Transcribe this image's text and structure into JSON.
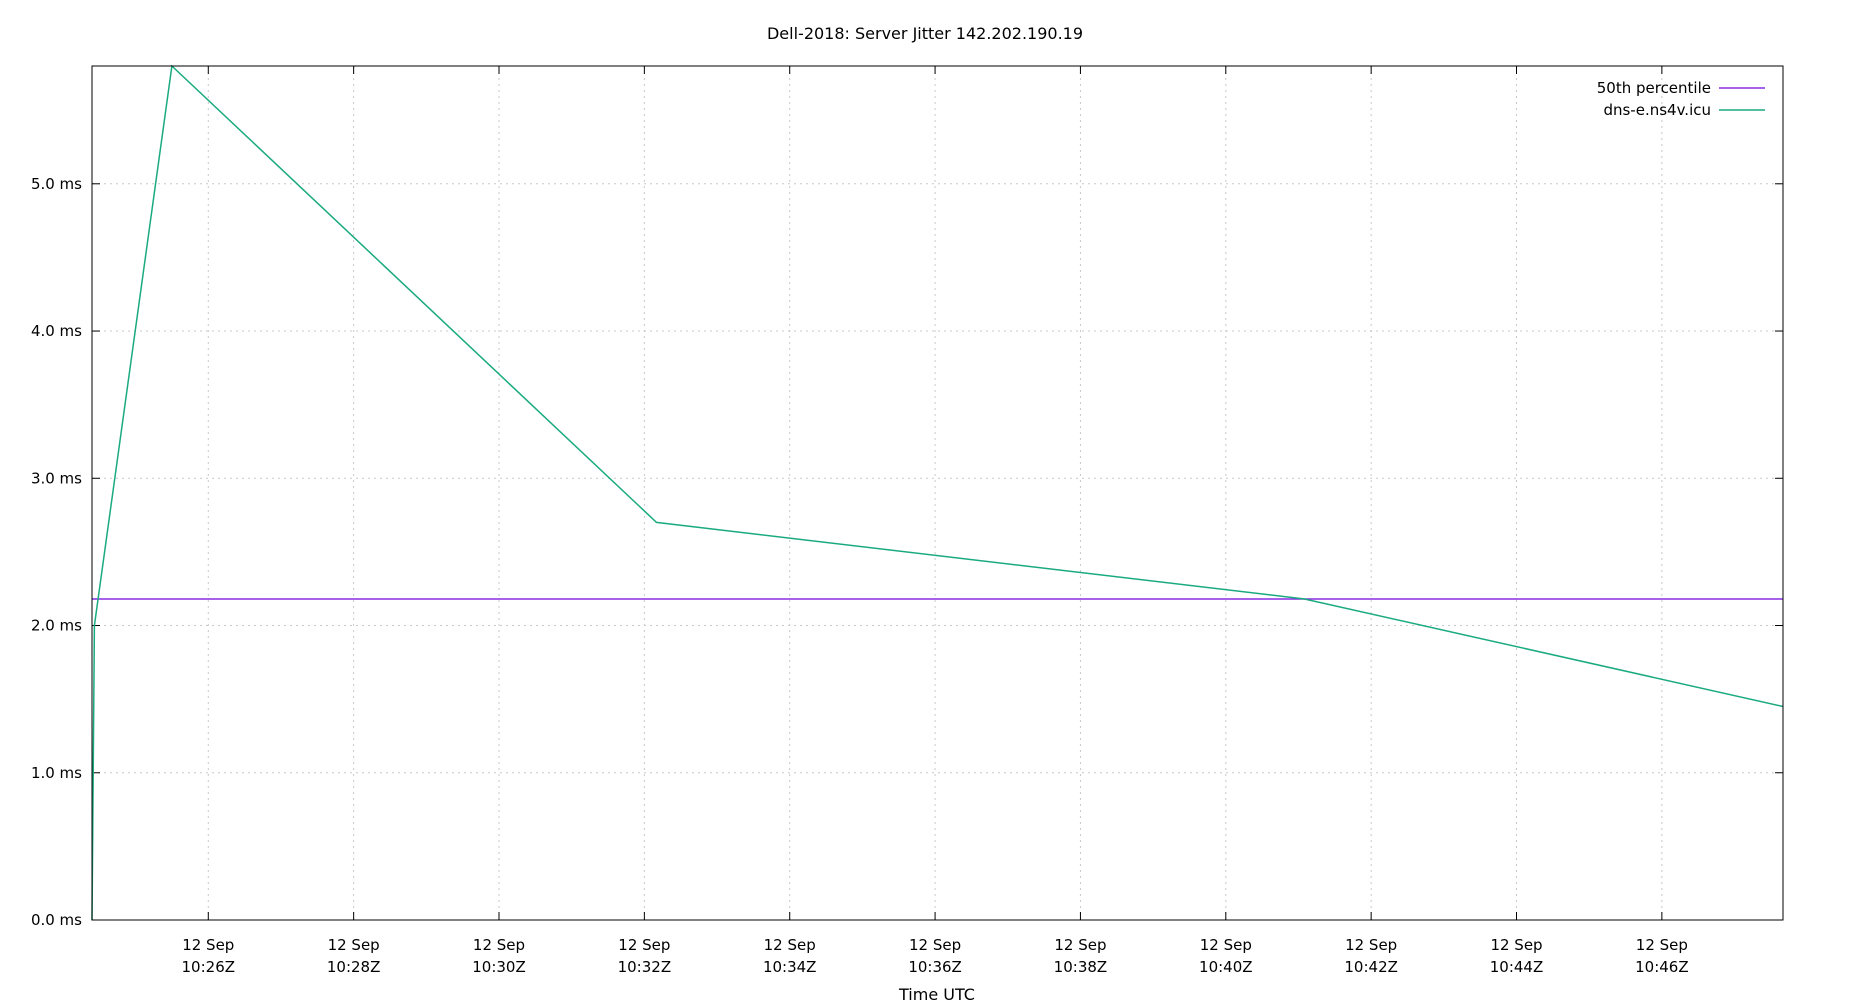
{
  "chart_data": {
    "type": "line",
    "title": "Dell-2018: Server Jitter 142.202.190.19",
    "xlabel": "Time UTC",
    "ylabel": "",
    "y_unit": "ms",
    "ylim": [
      0,
      5.8
    ],
    "y_ticks": [
      0.0,
      1.0,
      2.0,
      3.0,
      4.0,
      5.0
    ],
    "y_tick_labels": [
      "0.0 ms",
      "1.0 ms",
      "2.0 ms",
      "3.0 ms",
      "4.0 ms",
      "5.0 ms"
    ],
    "xlim": [
      "2024-09-12T10:24:24Z",
      "2024-09-12T10:47:40Z"
    ],
    "x_ticks": [
      "2024-09-12T10:26:00Z",
      "2024-09-12T10:28:00Z",
      "2024-09-12T10:30:00Z",
      "2024-09-12T10:32:00Z",
      "2024-09-12T10:34:00Z",
      "2024-09-12T10:36:00Z",
      "2024-09-12T10:38:00Z",
      "2024-09-12T10:40:00Z",
      "2024-09-12T10:42:00Z",
      "2024-09-12T10:44:00Z",
      "2024-09-12T10:46:00Z"
    ],
    "x_tick_labels": [
      [
        "12 Sep",
        "10:26Z"
      ],
      [
        "12 Sep",
        "10:28Z"
      ],
      [
        "12 Sep",
        "10:30Z"
      ],
      [
        "12 Sep",
        "10:32Z"
      ],
      [
        "12 Sep",
        "10:34Z"
      ],
      [
        "12 Sep",
        "10:36Z"
      ],
      [
        "12 Sep",
        "10:38Z"
      ],
      [
        "12 Sep",
        "10:40Z"
      ],
      [
        "12 Sep",
        "10:42Z"
      ],
      [
        "12 Sep",
        "10:44Z"
      ],
      [
        "12 Sep",
        "10:46Z"
      ]
    ],
    "grid": true,
    "legend_position": "top-right",
    "series": [
      {
        "name": "50th percentile",
        "color": "#8a2be2",
        "x": [
          "2024-09-12T10:24:24Z",
          "2024-09-12T10:47:40Z"
        ],
        "y": [
          2.18,
          2.18
        ]
      },
      {
        "name": "dns-e.ns4v.icu",
        "color": "#1aaa7f",
        "x": [
          "2024-09-12T10:24:24Z",
          "2024-09-12T10:24:26Z",
          "2024-09-12T10:25:30Z",
          "2024-09-12T10:32:10Z",
          "2024-09-12T10:41:05Z",
          "2024-09-12T10:47:40Z"
        ],
        "y": [
          0.0,
          2.0,
          5.8,
          2.7,
          2.18,
          1.45
        ]
      }
    ]
  }
}
